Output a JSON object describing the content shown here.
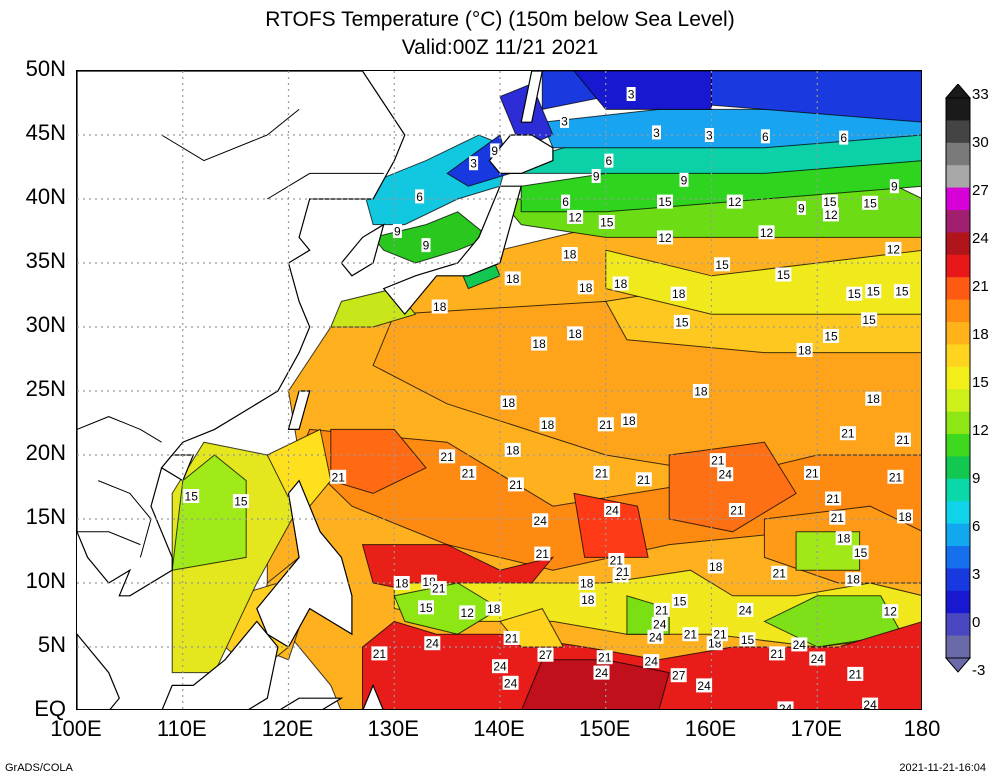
{
  "title": {
    "line1": "RTOFS Temperature (°C) (150m below Sea Level)",
    "line2": "Valid:00Z 11/21 2021"
  },
  "axes": {
    "lat_labels": [
      "50N",
      "45N",
      "40N",
      "35N",
      "30N",
      "25N",
      "20N",
      "15N",
      "10N",
      "5N",
      "EQ"
    ],
    "lon_labels": [
      "100E",
      "110E",
      "120E",
      "130E",
      "140E",
      "150E",
      "160E",
      "170E",
      "180"
    ]
  },
  "colorbar": {
    "labels": [
      "33",
      "30",
      "27",
      "24",
      "21",
      "18",
      "15",
      "12",
      "9",
      "6",
      "3",
      "0",
      "-3"
    ],
    "colors": [
      "#1a1a1a",
      "#444444",
      "#7a7a7a",
      "#a8a8a8",
      "#d800d8",
      "#a01f6e",
      "#b0151c",
      "#e81818",
      "#ff5a14",
      "#ff8c10",
      "#ffb21a",
      "#ffd41e",
      "#f2ee1a",
      "#cdf01a",
      "#8ee614",
      "#3ed81e",
      "#12c850",
      "#0ad8a8",
      "#10d2e8",
      "#12a8f0",
      "#1670ee",
      "#1838e0",
      "#1818d0",
      "#4a48c0",
      "#6a6aa8"
    ]
  },
  "map_data": {
    "variable": "Temperature at 150m",
    "units": "°C",
    "lon_range": [
      100,
      180
    ],
    "lat_range": [
      0,
      50
    ],
    "contour_labels": [
      {
        "v": "3",
        "lon": 137.5,
        "lat": 42.8
      },
      {
        "v": "3",
        "lon": 146.1,
        "lat": 46.1
      },
      {
        "v": "3",
        "lon": 152.4,
        "lat": 48.2
      },
      {
        "v": "3",
        "lon": 154.8,
        "lat": 45.2
      },
      {
        "v": "3",
        "lon": 159.8,
        "lat": 45.0
      },
      {
        "v": "6",
        "lon": 132.4,
        "lat": 40.2
      },
      {
        "v": "6",
        "lon": 146.2,
        "lat": 39.8
      },
      {
        "v": "6",
        "lon": 150.3,
        "lat": 43.0
      },
      {
        "v": "6",
        "lon": 165.1,
        "lat": 44.9
      },
      {
        "v": "6",
        "lon": 172.5,
        "lat": 44.8
      },
      {
        "v": "9",
        "lon": 139.5,
        "lat": 43.8
      },
      {
        "v": "9",
        "lon": 133.0,
        "lat": 36.4
      },
      {
        "v": "9",
        "lon": 130.3,
        "lat": 37.5
      },
      {
        "v": "9",
        "lon": 149.1,
        "lat": 41.8
      },
      {
        "v": "9",
        "lon": 157.4,
        "lat": 41.5
      },
      {
        "v": "9",
        "lon": 168.5,
        "lat": 39.3
      },
      {
        "v": "9",
        "lon": 177.3,
        "lat": 41.0
      },
      {
        "v": "12",
        "lon": 147.1,
        "lat": 38.6
      },
      {
        "v": "12",
        "lon": 155.6,
        "lat": 37.0
      },
      {
        "v": "12",
        "lon": 162.2,
        "lat": 39.8
      },
      {
        "v": "12",
        "lon": 165.2,
        "lat": 37.4
      },
      {
        "v": "12",
        "lon": 171.3,
        "lat": 38.8
      },
      {
        "v": "12",
        "lon": 177.2,
        "lat": 36.1
      },
      {
        "v": "12",
        "lon": 176.9,
        "lat": 7.8
      },
      {
        "v": "12",
        "lon": 136.9,
        "lat": 7.7
      },
      {
        "v": "15",
        "lon": 155.6,
        "lat": 39.8
      },
      {
        "v": "15",
        "lon": 150.1,
        "lat": 38.2
      },
      {
        "v": "15",
        "lon": 171.2,
        "lat": 39.8
      },
      {
        "v": "15",
        "lon": 175.0,
        "lat": 39.7
      },
      {
        "v": "15",
        "lon": 161.0,
        "lat": 34.9
      },
      {
        "v": "15",
        "lon": 166.8,
        "lat": 34.1
      },
      {
        "v": "15",
        "lon": 173.5,
        "lat": 32.6
      },
      {
        "v": "15",
        "lon": 175.3,
        "lat": 32.8
      },
      {
        "v": "15",
        "lon": 178.0,
        "lat": 32.8
      },
      {
        "v": "15",
        "lon": 174.9,
        "lat": 30.6
      },
      {
        "v": "15",
        "lon": 157.2,
        "lat": 30.4
      },
      {
        "v": "15",
        "lon": 171.3,
        "lat": 29.3
      },
      {
        "v": "15",
        "lon": 110.8,
        "lat": 16.8
      },
      {
        "v": "15",
        "lon": 115.5,
        "lat": 16.4
      },
      {
        "v": "15",
        "lon": 133.0,
        "lat": 8.1
      },
      {
        "v": "15",
        "lon": 157.0,
        "lat": 8.6
      },
      {
        "v": "15",
        "lon": 163.4,
        "lat": 5.6
      },
      {
        "v": "15",
        "lon": 174.1,
        "lat": 12.4
      },
      {
        "v": "18",
        "lon": 146.6,
        "lat": 35.7
      },
      {
        "v": "18",
        "lon": 141.2,
        "lat": 33.8
      },
      {
        "v": "18",
        "lon": 148.1,
        "lat": 33.1
      },
      {
        "v": "18",
        "lon": 151.4,
        "lat": 33.4
      },
      {
        "v": "18",
        "lon": 156.9,
        "lat": 32.6
      },
      {
        "v": "18",
        "lon": 134.3,
        "lat": 31.6
      },
      {
        "v": "18",
        "lon": 147.1,
        "lat": 29.5
      },
      {
        "v": "18",
        "lon": 143.7,
        "lat": 28.7
      },
      {
        "v": "18",
        "lon": 168.8,
        "lat": 28.2
      },
      {
        "v": "18",
        "lon": 159.0,
        "lat": 25.0
      },
      {
        "v": "18",
        "lon": 175.3,
        "lat": 24.4
      },
      {
        "v": "18",
        "lon": 140.8,
        "lat": 24.1
      },
      {
        "v": "18",
        "lon": 144.5,
        "lat": 22.4
      },
      {
        "v": "18",
        "lon": 152.2,
        "lat": 22.7
      },
      {
        "v": "18",
        "lon": 141.2,
        "lat": 20.4
      },
      {
        "v": "18",
        "lon": 178.3,
        "lat": 15.2
      },
      {
        "v": "18",
        "lon": 172.5,
        "lat": 13.5
      },
      {
        "v": "18",
        "lon": 160.4,
        "lat": 11.3
      },
      {
        "v": "18",
        "lon": 148.2,
        "lat": 10.0
      },
      {
        "v": "18",
        "lon": 130.7,
        "lat": 10.0
      },
      {
        "v": "18",
        "lon": 133.3,
        "lat": 10.1
      },
      {
        "v": "18",
        "lon": 173.4,
        "lat": 10.3
      },
      {
        "v": "18",
        "lon": 151.4,
        "lat": 10.6
      },
      {
        "v": "18",
        "lon": 139.4,
        "lat": 8.0
      },
      {
        "v": "18",
        "lon": 148.3,
        "lat": 8.7
      },
      {
        "v": "18",
        "lon": 160.3,
        "lat": 5.3
      },
      {
        "v": "21",
        "lon": 150.0,
        "lat": 22.4
      },
      {
        "v": "21",
        "lon": 172.9,
        "lat": 21.7
      },
      {
        "v": "21",
        "lon": 178.1,
        "lat": 21.2
      },
      {
        "v": "21",
        "lon": 135.0,
        "lat": 19.9
      },
      {
        "v": "21",
        "lon": 160.6,
        "lat": 19.6
      },
      {
        "v": "21",
        "lon": 137.0,
        "lat": 18.6
      },
      {
        "v": "21",
        "lon": 149.6,
        "lat": 18.6
      },
      {
        "v": "21",
        "lon": 169.5,
        "lat": 18.6
      },
      {
        "v": "21",
        "lon": 177.4,
        "lat": 18.3
      },
      {
        "v": "21",
        "lon": 124.7,
        "lat": 18.3
      },
      {
        "v": "21",
        "lon": 153.6,
        "lat": 18.1
      },
      {
        "v": "21",
        "lon": 141.5,
        "lat": 17.7
      },
      {
        "v": "21",
        "lon": 171.5,
        "lat": 16.6
      },
      {
        "v": "21",
        "lon": 162.4,
        "lat": 15.7
      },
      {
        "v": "21",
        "lon": 171.9,
        "lat": 15.1
      },
      {
        "v": "21",
        "lon": 144.0,
        "lat": 12.3
      },
      {
        "v": "21",
        "lon": 151.0,
        "lat": 11.8
      },
      {
        "v": "21",
        "lon": 151.6,
        "lat": 10.9
      },
      {
        "v": "21",
        "lon": 134.2,
        "lat": 9.6
      },
      {
        "v": "21",
        "lon": 166.4,
        "lat": 10.8
      },
      {
        "v": "21",
        "lon": 158.0,
        "lat": 6.0
      },
      {
        "v": "21",
        "lon": 141.1,
        "lat": 5.7
      },
      {
        "v": "21",
        "lon": 160.8,
        "lat": 6.0
      },
      {
        "v": "21",
        "lon": 128.6,
        "lat": 4.5
      },
      {
        "v": "21",
        "lon": 155.3,
        "lat": 7.9
      },
      {
        "v": "21",
        "lon": 149.9,
        "lat": 4.2
      },
      {
        "v": "21",
        "lon": 166.2,
        "lat": 4.5
      },
      {
        "v": "21",
        "lon": 173.6,
        "lat": 2.9
      },
      {
        "v": "24",
        "lon": 161.3,
        "lat": 18.5
      },
      {
        "v": "24",
        "lon": 150.6,
        "lat": 15.7
      },
      {
        "v": "24",
        "lon": 143.8,
        "lat": 14.9
      },
      {
        "v": "24",
        "lon": 163.2,
        "lat": 7.9
      },
      {
        "v": "24",
        "lon": 155.1,
        "lat": 6.8
      },
      {
        "v": "24",
        "lon": 154.7,
        "lat": 5.8
      },
      {
        "v": "24",
        "lon": 133.6,
        "lat": 5.3
      },
      {
        "v": "24",
        "lon": 168.3,
        "lat": 5.2
      },
      {
        "v": "24",
        "lon": 159.3,
        "lat": 2.0
      },
      {
        "v": "24",
        "lon": 154.3,
        "lat": 3.9
      },
      {
        "v": "24",
        "lon": 149.6,
        "lat": 3.0
      },
      {
        "v": "24",
        "lon": 140.0,
        "lat": 3.5
      },
      {
        "v": "24",
        "lon": 141.0,
        "lat": 2.2
      },
      {
        "v": "24",
        "lon": 170.0,
        "lat": 4.1
      },
      {
        "v": "24",
        "lon": 175.0,
        "lat": 0.5
      },
      {
        "v": "24",
        "lon": 167.0,
        "lat": 0.2
      },
      {
        "v": "27",
        "lon": 144.3,
        "lat": 4.4
      },
      {
        "v": "27",
        "lon": 156.9,
        "lat": 2.8
      }
    ]
  },
  "footer": {
    "left": "GrADS/COLA",
    "right": "2021-11-21-16:04"
  }
}
